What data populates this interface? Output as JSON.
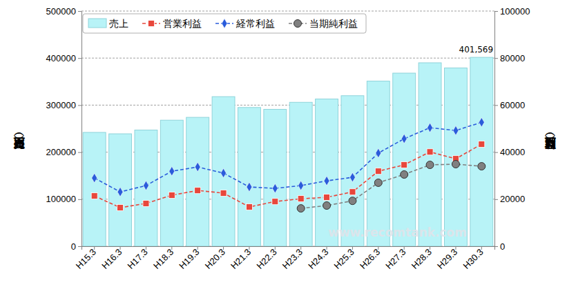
{
  "chart_data": {
    "type": "bar",
    "categories": [
      "H15.3",
      "H16.3",
      "H17.3",
      "H18.3",
      "H19.3",
      "H20.3",
      "H21.3",
      "H22.3",
      "H23.3",
      "H24.3",
      "H25.3",
      "H26.3",
      "H27.3",
      "H28.3",
      "H29.3",
      "H30.3"
    ],
    "y_label": "売上（百万円）",
    "y2_label": "利益（百万円）",
    "ylim": [
      0,
      500000
    ],
    "yticks": [
      0,
      100000,
      200000,
      300000,
      400000,
      500000
    ],
    "y2lim": [
      0,
      100000
    ],
    "y2ticks": [
      0,
      20000,
      40000,
      60000,
      80000,
      100000
    ],
    "grid": true,
    "legend": "upper left",
    "series": [
      {
        "name": "売上",
        "type": "bar",
        "color": "#b8f3f7",
        "values": [
          242000,
          239000,
          247000,
          268000,
          274000,
          318000,
          295000,
          291000,
          306000,
          313000,
          320000,
          351000,
          368000,
          390000,
          379000,
          401569
        ]
      },
      {
        "name": "営業利益",
        "type": "line",
        "axis": "y2",
        "color": "#e8473c",
        "marker": "square",
        "line_style": "dashed",
        "values": [
          21400,
          16400,
          18200,
          21700,
          23700,
          22600,
          16700,
          19000,
          20200,
          20800,
          23100,
          31900,
          34600,
          40100,
          37200,
          43400
        ]
      },
      {
        "name": "経常利益",
        "type": "line",
        "axis": "y2",
        "color": "#2a5cdb",
        "marker": "diamond",
        "line_style": "dashed",
        "values": [
          29000,
          23100,
          25800,
          31900,
          33700,
          31100,
          25200,
          24600,
          25800,
          27800,
          29300,
          39600,
          45700,
          50400,
          49200,
          52700
        ]
      },
      {
        "name": "当期純利益",
        "type": "line",
        "axis": "y2",
        "color": "#808080",
        "marker": "circle",
        "line_style": "dashed",
        "values": [
          null,
          null,
          null,
          null,
          null,
          null,
          null,
          null,
          16100,
          17300,
          19300,
          27000,
          30500,
          34600,
          34900,
          34000
        ]
      }
    ],
    "annotations": [
      {
        "text": "401,569",
        "category": "H30.3"
      },
      {
        "text": "www.recomtank.com"
      }
    ]
  }
}
